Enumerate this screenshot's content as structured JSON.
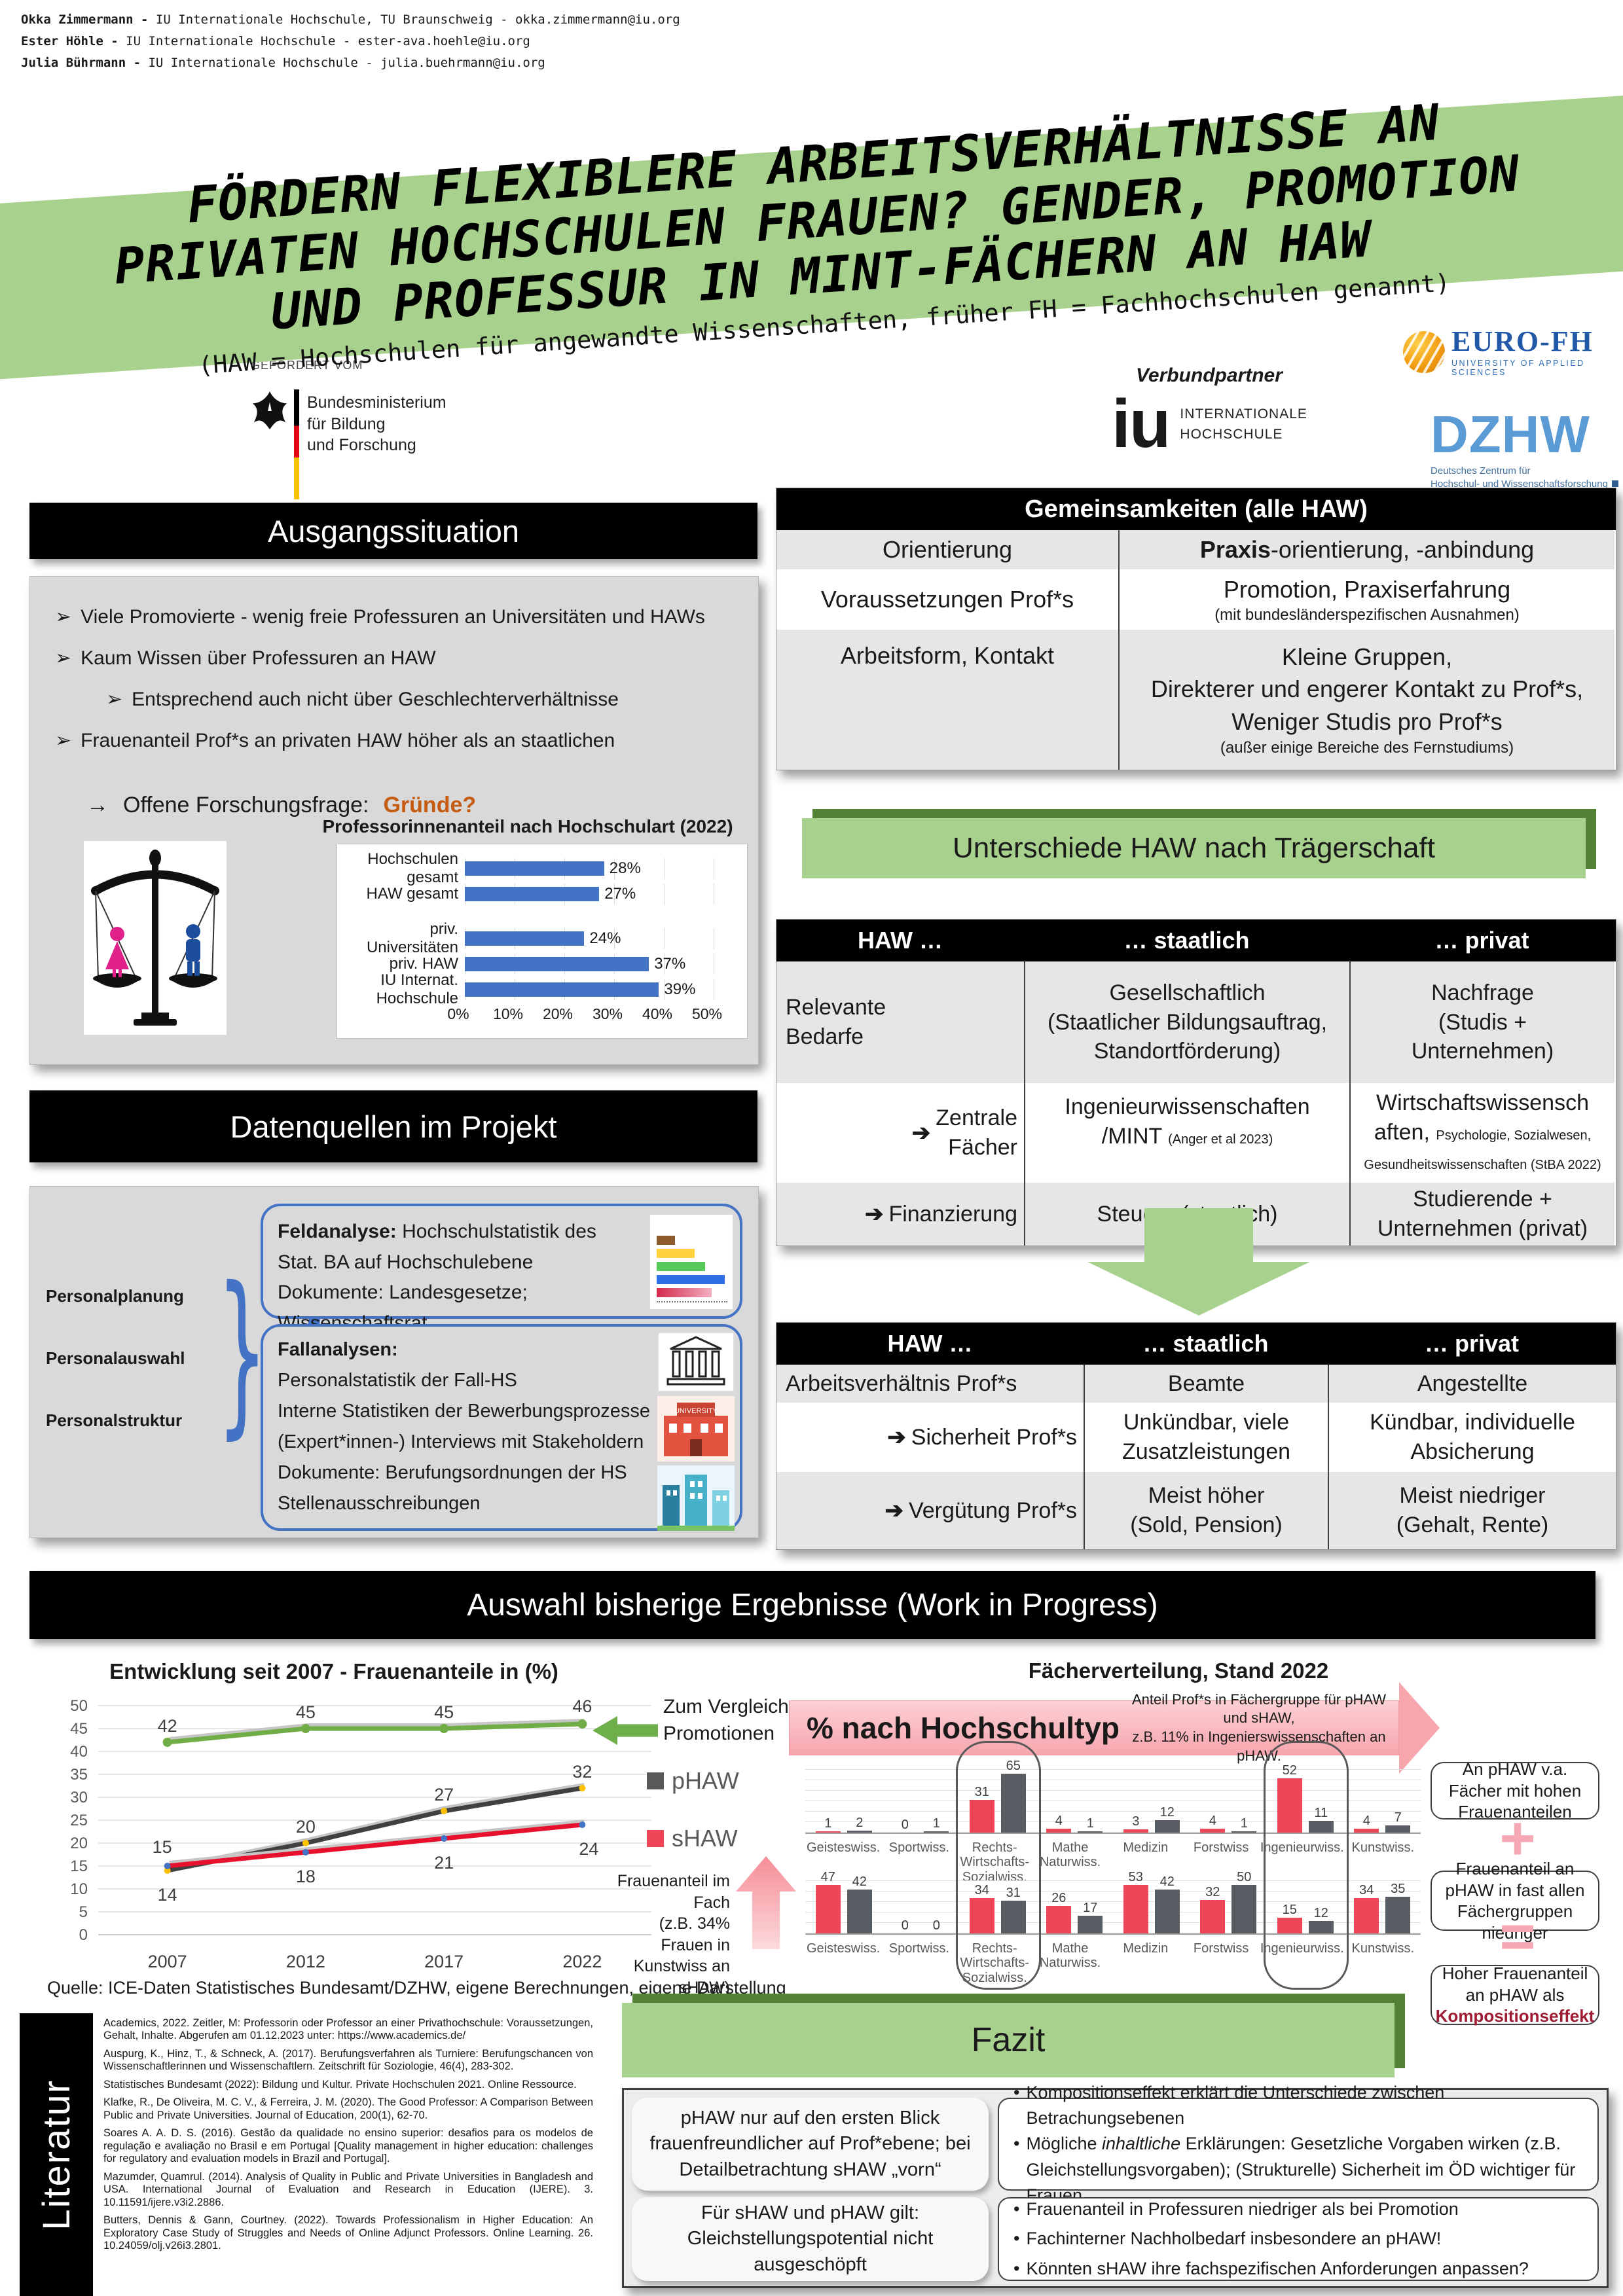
{
  "icons": {
    "bullet": "➢",
    "arrow": "→",
    "arrow_solid": "➔",
    "dot": "•",
    "plus": "+",
    "equals": "="
  },
  "header": {
    "authors": [
      {
        "name": "Okka Zimmermann -",
        "rest": " IU Internationale Hochschule, TU Braunschweig - okka.zimmermann@iu.org"
      },
      {
        "name": "Ester Höhle -",
        "rest": " IU Internationale Hochschule - ester-ava.hoehle@iu.org"
      },
      {
        "name": "Julia Bührmann -",
        "rest": " IU Internationale Hochschule - julia.buehrmann@iu.org"
      }
    ]
  },
  "title_banner": {
    "lines": [
      "FÖRDERN FLEXIBLERE ARBEITSVERHÄLTNISSE AN",
      "PRIVATEN HOCHSCHULEN FRAUEN? GENDER, PROMOTION",
      "UND PROFESSUR IN MINT-FÄCHERN AN HAW"
    ],
    "subtitle": "(HAW = Hochschulen für angewandte Wissenschaften, früher FH = Fachhochschulen genannt)"
  },
  "funding": {
    "label": "GEFÖRDERT VOM",
    "ministry_lines": [
      "Bundesministerium",
      "für Bildung",
      "und Forschung"
    ]
  },
  "partners": {
    "label": "Verbundpartner",
    "eurofh": {
      "name": "EURO-FH",
      "sub": "UNIVERSITY OF APPLIED SCIENCES"
    },
    "iu": {
      "name": "iu",
      "sub1": "INTERNATIONALE",
      "sub2": "HOCHSCHULE"
    },
    "dzhw": {
      "name": "DZHW",
      "sub1": "Deutsches Zentrum für",
      "sub2": "Hochschul- und Wissenschaftsforschung"
    }
  },
  "ausgangssituation": {
    "title": "Ausgangssituation",
    "bullets": [
      {
        "level": 1,
        "text": "Viele Promovierte  - wenig freie Professuren an Universitäten und HAWs"
      },
      {
        "level": 1,
        "text": "Kaum Wissen über Professuren an HAW"
      },
      {
        "level": 2,
        "text": "Entsprechend auch nicht über Geschlechterverhältnisse"
      },
      {
        "level": 1,
        "text": "Frauenanteil Prof*s an privaten HAW höher als an staatlichen"
      }
    ],
    "question_label": "Offene Forschungsfrage:",
    "question_highlight": "Gründe?"
  },
  "datenquellen": {
    "title": "Datenquellen im Projekt",
    "left_labels": [
      "Personalplanung",
      "Personalauswahl",
      "Personalstruktur"
    ],
    "box1": {
      "bold": "Feldanalyse:",
      "rest": " Hochschulstatistik des Stat. BA auf Hochschulebene",
      "line2": "Dokumente: Landesgesetze; Wissenschaftsrat"
    },
    "box2": {
      "bold": "Fallanalysen:",
      "lines": [
        "Personalstatistik der Fall-HS",
        "Interne Statistiken der Bewerbungsprozesse",
        "(Expert*innen-) Interviews mit Stakeholdern",
        "Dokumente: Berufungsordnungen der HS",
        "Stellenausschreibungen"
      ]
    }
  },
  "gemeinsamkeiten": {
    "title": "Gemeinsamkeiten (alle HAW)",
    "rows": [
      {
        "label": "Orientierung",
        "v_bold": "Praxis",
        "v_rest": "  -orientierung, -anbindung"
      },
      {
        "label": "Voraussetzungen Prof*s",
        "value": "Promotion, Praxiserfahrung",
        "note": "(mit bundesländerspezifischen Ausnahmen)"
      },
      {
        "label": "Arbeitsform, Kontakt",
        "lines": [
          "Kleine Gruppen,",
          "Direkterer und engerer Kontakt zu Prof*s,",
          "Weniger Studis pro Prof*s"
        ],
        "note": "(außer einige Bereiche des Fernstudiums)"
      }
    ]
  },
  "unterschiede": {
    "title": "Unterschiede HAW nach Trägerschaft",
    "table1": {
      "headers": [
        "HAW …",
        "… staatlich",
        "… privat"
      ],
      "rows": [
        {
          "label": "Relevante\nBedarfe",
          "staatlich": "Gesellschaftlich\n(Staatlicher Bildungsauftrag,\nStandortförderung)",
          "privat": "Nachfrage\n(Studis +\nUnternehmen)"
        },
        {
          "label": "Zentrale\nFächer",
          "staatlich_main": "Ingenieurwissenschaften\n/MINT ",
          "staatlich_small": "(Anger et al 2023)",
          "privat_main": "Wirtschaftswissensch\naften, ",
          "privat_small": "Psychologie, Sozialwesen, Gesundheitswissenschaften (StBA 2022)"
        },
        {
          "label": "Finanzierung",
          "staatlich": "Steuern (staatlich)",
          "privat": "Studierende +\nUnternehmen (privat)"
        }
      ]
    },
    "table2": {
      "headers": [
        "HAW …",
        "… staatlich",
        "… privat"
      ],
      "rows": [
        {
          "label": "Arbeitsverhältnis Prof*s",
          "staatlich": "Beamte",
          "privat": "Angestellte"
        },
        {
          "label": "Sicherheit Prof*s",
          "staatlich": "Unkündbar, viele\nZusatzleistungen",
          "privat": "Kündbar, individuelle\nAbsicherung"
        },
        {
          "label": "Vergütung Prof*s",
          "staatlich": "Meist höher\n(Sold, Pension)",
          "privat": "Meist niedriger\n(Gehalt, Rente)"
        }
      ]
    }
  },
  "ergebnisse": {
    "title": "Auswahl bisherige Ergebnisse (Work in Progress)",
    "compare_note": "Zum Vergleich:\nPromotionen",
    "side_note": "Frauenanteil im Fach\n(z.B. 34% Frauen in\nKunstwiss an sHAW)",
    "source": "Quelle: ICE-Daten Statistisches Bundesamt/DZHW, eigene Berechnungen, eigene Darstellung",
    "banner_note": "Anteil Prof*s in Fächergruppe  für pHAW und sHAW,\nz.B. 11% in Ingenierswissenschaften  an pHAW.",
    "callouts": [
      {
        "text": "An pHAW v.a. Fächer mit hohen Frauenanteilen"
      },
      {
        "text": "Frauenanteil an pHAW in fast allen Fächergruppen niedriger"
      },
      {
        "pre": "Hoher Frauenanteil an pHAW als ",
        "em": "Kompositionseffekt"
      }
    ]
  },
  "fazit": {
    "title": "Fazit",
    "rows": [
      {
        "left": "pHAW nur auf den ersten Blick frauenfreundlicher auf Prof*ebene; bei Detailbetrachtung sHAW „vorn“",
        "bullets": [
          {
            "text": "Kompositionseffekt erklärt die Unterschiede zwischen Betrachungsebenen"
          },
          {
            "pre": "Mögliche ",
            "italic": "inhaltliche",
            "post": " Erklärungen: Gesetzliche Vorgaben wirken (z.B. Gleichstellungsvorgaben); (Strukturelle) Sicherheit im ÖD wichtiger für Frauen"
          }
        ]
      },
      {
        "left": "Für sHAW und pHAW gilt: Gleichstellungspotential nicht ausgeschöpft",
        "bullets": [
          {
            "text": "Frauenanteil in Professuren niedriger als bei Promotion"
          },
          {
            "text": "Fachinterner Nachholbedarf insbesondere an pHAW!"
          },
          {
            "text": "Könnten sHAW ihre fachspezifischen Anforderungen anpassen?"
          }
        ]
      }
    ]
  },
  "literatur": {
    "title": "Literatur",
    "refs": [
      "Academics, 2022. Zeitler, M: Professorin oder Professor an einer Privathochschule: Voraussetzungen, Gehalt, Inhalte. Abgerufen am 01.12.2023 unter: https://www.academics.de/",
      "Auspurg, K., Hinz, T., & Schneck, A. (2017). Berufungsverfahren als Turniere: Berufungschancen von Wissenschaftlerinnen und Wissenschaftlern. Zeitschrift für Soziologie, 46(4), 283-302.",
      "Statistisches Bundesamt (2022): Bildung und Kultur. Private Hochschulen 2021. Online Ressource.",
      "Klafke, R., De Oliveira, M. C. V., & Ferreira, J. M. (2020). The Good Professor: A Comparison Between Public and Private Universities. Journal of Education, 200(1), 62-70.",
      "Soares A. A. D. S. (2016). Gestão da qualidade no ensino superior: desafios para os modelos de regulação e avaliação no Brasil e em Portugal [Quality management in higher education: challenges for regulatory and evaluation models in Brazil and Portugal].",
      "Mazumder, Quamrul. (2014). Analysis of Quality in Public and Private Universities in Bangladesh and USA. International Journal of Evaluation and Research in Education (IJERE). 3. 10.11591/ijere.v3i2.2886.",
      "Butters, Dennis & Gann, Courtney. (2022). Towards Professionalism in Higher Education: An Exploratory Case Study of Struggles and Needs of Online Adjunct Professors. Online Learning. 26. 10.24059/olj.v26i3.2801."
    ]
  },
  "chart_data": [
    {
      "id": "professorinnenanteil",
      "type": "bar",
      "orientation": "horizontal",
      "title": "Professorinnenanteil nach Hochschulart (2022)",
      "categories": [
        "Hochschulen gesamt",
        "HAW gesamt",
        "",
        "priv. Universitäten",
        "priv. HAW",
        "IU Internat. Hochschule"
      ],
      "values": [
        28,
        27,
        null,
        24,
        37,
        39
      ],
      "xlim": [
        0,
        50
      ],
      "xticks": [
        "0%",
        "10%",
        "20%",
        "30%",
        "40%",
        "50%"
      ],
      "bar_color": "#4472c4",
      "grid": true
    },
    {
      "id": "entwicklung",
      "type": "line",
      "title": "Entwicklung seit 2007 - Frauenanteile in (%)",
      "x": [
        "2007",
        "2012",
        "2017",
        "2022"
      ],
      "ylim": [
        0,
        50
      ],
      "ytick_step": 5,
      "grid": true,
      "series": [
        {
          "name": "Promotionen",
          "color": "#70ad47",
          "values": [
            42,
            45,
            45,
            46
          ]
        },
        {
          "name": "pHAW",
          "color": "#404040",
          "values": [
            14,
            20,
            27,
            32
          ]
        },
        {
          "name": "sHAW",
          "color": "#e8112d",
          "values": [
            15,
            18,
            21,
            24
          ]
        }
      ],
      "legend_position": "right"
    },
    {
      "id": "faecherverteilung_typ",
      "type": "bar",
      "title": "% nach Hochschultyp",
      "suptitle": "Fächerverteilung, Stand 2022",
      "categories": [
        "Geisteswiss.",
        "Sportwiss.",
        "Rechts- Wirtschafts- Sozialwiss.",
        "Mathe Naturwiss.",
        "Medizin",
        "Forstwiss",
        "Ingenieurwiss.",
        "Kunstwiss."
      ],
      "series": [
        {
          "name": "sHAW",
          "color": "#ee4657",
          "values": [
            1,
            0,
            31,
            4,
            3,
            4,
            52,
            4
          ]
        },
        {
          "name": "pHAW",
          "color": "#575d63",
          "values": [
            2,
            1,
            65,
            1,
            12,
            1,
            11,
            7
          ]
        }
      ],
      "ylim": [
        0,
        70
      ]
    },
    {
      "id": "frauenanteil_fach",
      "type": "bar",
      "title": "Frauenanteil im Fach",
      "categories": [
        "Geisteswiss.",
        "Sportwiss.",
        "Rechts- Wirtschafts- Sozialwiss.",
        "Mathe Naturwiss.",
        "Medizin",
        "Forstwiss",
        "Ingenieurwiss.",
        "Kunstwiss."
      ],
      "series": [
        {
          "name": "sHAW",
          "color": "#ee4657",
          "values": [
            47,
            0,
            34,
            26,
            53,
            32,
            15,
            34
          ]
        },
        {
          "name": "pHAW",
          "color": "#575d63",
          "values": [
            42,
            0,
            31,
            17,
            42,
            50,
            12,
            35
          ]
        }
      ],
      "ylim": [
        0,
        60
      ]
    }
  ]
}
